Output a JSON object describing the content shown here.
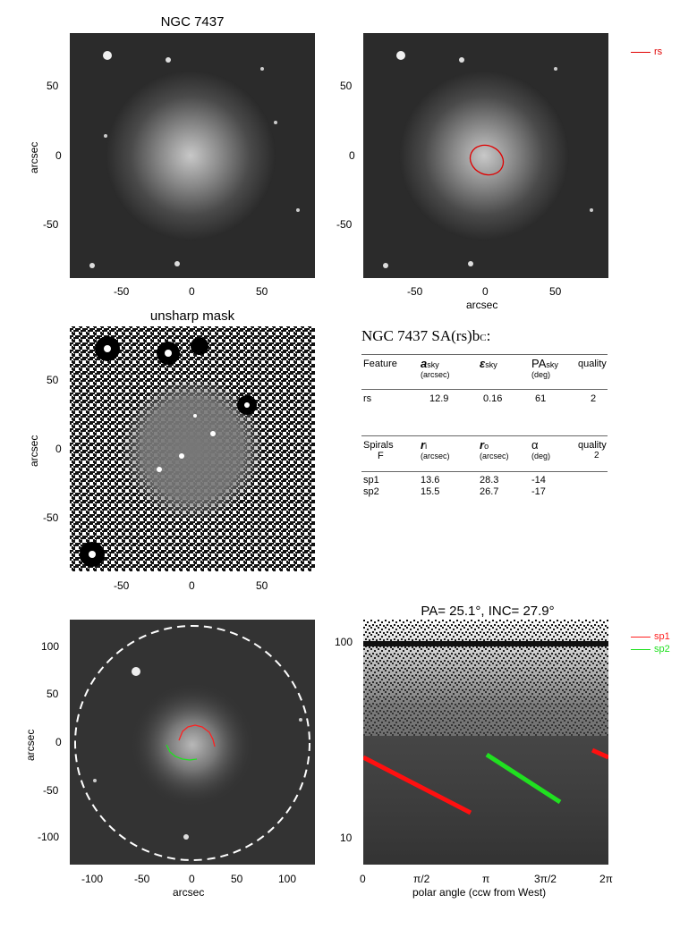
{
  "panels": {
    "p1": {
      "title": "NGC 7437",
      "ylabel": "arcsec",
      "yticks": [
        "50",
        "0",
        "-50"
      ],
      "xticks": [
        "-50",
        "0",
        "50"
      ]
    },
    "p2": {
      "xlabel": "arcsec",
      "yticks": [
        "50",
        "0",
        "-50"
      ],
      "xticks": [
        "-50",
        "0",
        "50"
      ],
      "legend": "rs"
    },
    "p3": {
      "title": "unsharp mask",
      "ylabel": "arcsec",
      "yticks": [
        "50",
        "0",
        "-50"
      ],
      "xticks": [
        "-50",
        "0",
        "50"
      ]
    },
    "p5": {
      "xlabel": "arcsec",
      "ylabel": "arcsec",
      "yticks": [
        "100",
        "50",
        "0",
        "-50",
        "-100"
      ],
      "xticks": [
        "-100",
        "-50",
        "0",
        "50",
        "100"
      ]
    },
    "p6": {
      "title": "PA= 25.1°, INC= 27.9°",
      "xlabel": "polar angle (ccw from West)",
      "yticks": [
        "100",
        "10"
      ],
      "xticks": [
        "0",
        "π/2",
        "π",
        "3π/2",
        "2π"
      ],
      "legend": [
        "sp1",
        "sp2"
      ]
    }
  },
  "table": {
    "title": "NGC 7437  SA(rs)b",
    "title_sub": "C",
    "title_suffix": ":",
    "h1": {
      "c1": "Feature",
      "c2": "a",
      "c2s": "sky",
      "c2u": "(arcsec)",
      "c3": "ε",
      "c3s": "sky",
      "c4": "PA",
      "c4s": "sky",
      "c4u": "(deg)",
      "c5": "quality"
    },
    "r1": {
      "c1": "rs",
      "c2": "12.9",
      "c3": "0.16",
      "c4": "61",
      "c5": "2"
    },
    "h2": {
      "c1": "Spirals",
      "c1b": "F",
      "c2": "r",
      "c2s": "i",
      "c2u": "(arcsec)",
      "c3": "r",
      "c3s": "o",
      "c3u": "(arcsec)",
      "c4": "α",
      "c4u": "(deg)",
      "c5": "quality",
      "c5b": "2"
    },
    "sp1": {
      "c1": "sp1",
      "c2": "13.6",
      "c3": "28.3",
      "c4": "-14"
    },
    "sp2": {
      "c1": "sp2",
      "c2": "15.5",
      "c3": "26.7",
      "c4": "-17"
    }
  },
  "colors": {
    "rs": "#e00000",
    "sp1": "#ff2020",
    "sp2": "#20e020"
  }
}
